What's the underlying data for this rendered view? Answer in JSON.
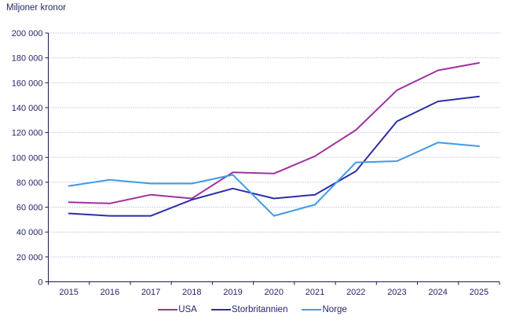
{
  "chart_data": {
    "type": "line",
    "title": "Miljoner kronor",
    "x": [
      2015,
      2016,
      2017,
      2018,
      2019,
      2020,
      2021,
      2022,
      2023,
      2024,
      2025
    ],
    "series": [
      {
        "name": "USA",
        "color": "#A0329E",
        "values": [
          64000,
          63000,
          70000,
          67000,
          88000,
          87000,
          101000,
          122000,
          154000,
          170000,
          176000
        ]
      },
      {
        "name": "Storbritannien",
        "color": "#2E2EA5",
        "values": [
          55000,
          53000,
          53000,
          66000,
          75000,
          67000,
          70000,
          89000,
          129000,
          145000,
          149000
        ]
      },
      {
        "name": "Norge",
        "color": "#3E9BE8",
        "values": [
          77000,
          82000,
          79000,
          79000,
          86000,
          53000,
          62000,
          96000,
          97000,
          112000,
          109000
        ]
      }
    ],
    "ylim": [
      0,
      200000
    ],
    "ytick_step": 20000,
    "ytick_labels": [
      "0",
      "20 000",
      "40 000",
      "60 000",
      "80 000",
      "100 000",
      "120 000",
      "140 000",
      "160 000",
      "180 000",
      "200 000"
    ],
    "xlabel": "",
    "ylabel": "Miljoner kronor",
    "grid": true,
    "legend_position": "bottom"
  }
}
